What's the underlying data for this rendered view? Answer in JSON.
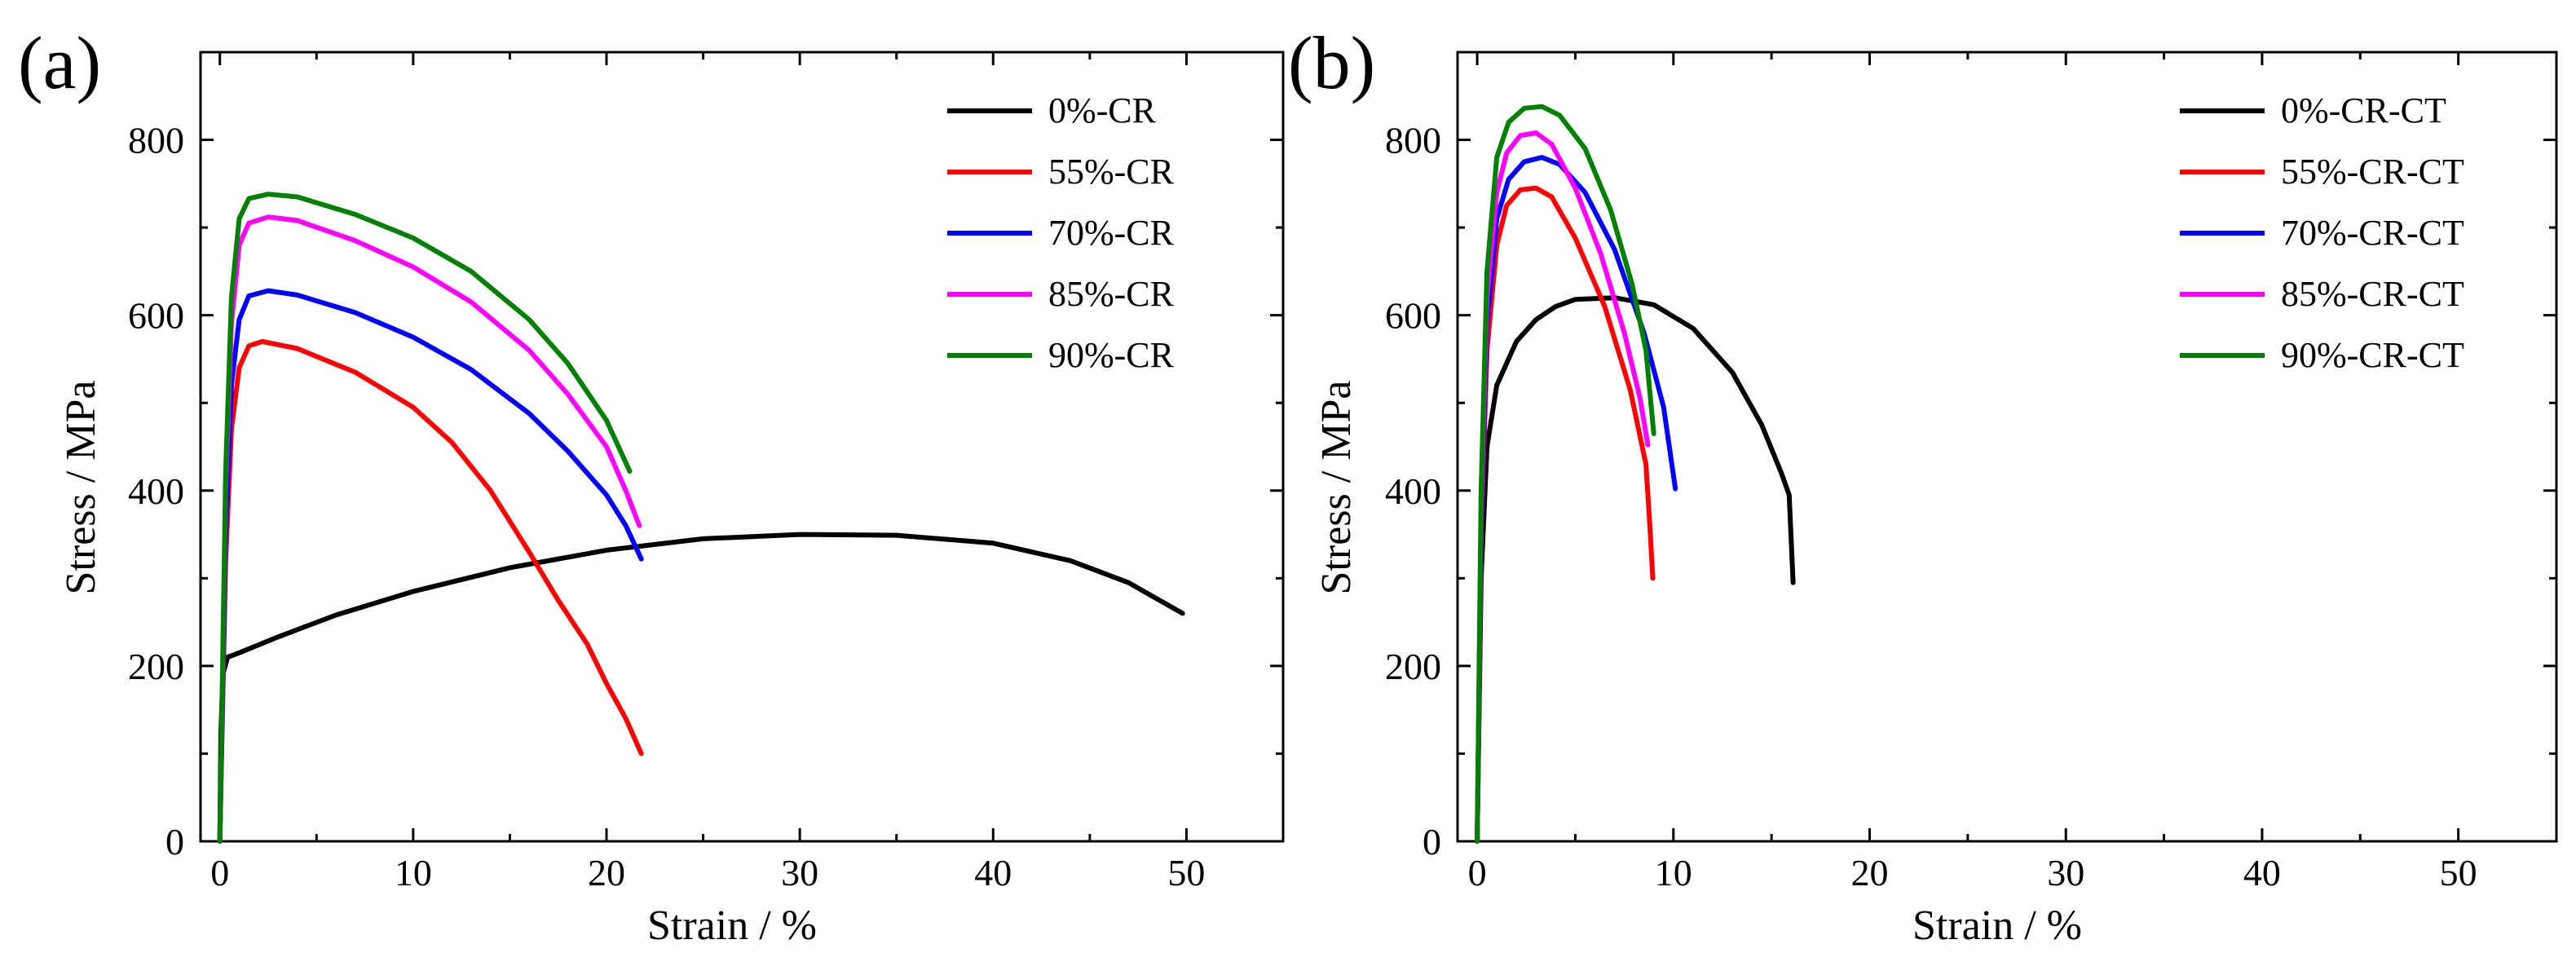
{
  "chart_data": [
    {
      "type": "line",
      "panel_label": "(a)",
      "xlabel": "Strain / %",
      "ylabel": "Stress / MPa",
      "xlim": [
        -1,
        55
      ],
      "ylim": [
        0,
        900
      ],
      "xticks": [
        0,
        10,
        20,
        30,
        40,
        50
      ],
      "yticks": [
        0,
        200,
        400,
        600,
        800
      ],
      "x_tick_labels": [
        "0",
        "10",
        "20",
        "30",
        "40",
        "50"
      ],
      "y_tick_labels": [
        "0",
        "200",
        "400",
        "600",
        "800"
      ],
      "grid": false,
      "legend_position": "top-right",
      "series": [
        {
          "name": "0%-CR",
          "color": "#000000",
          "x": [
            0,
            0.05,
            0.15,
            0.4,
            1,
            3,
            6,
            10,
            15,
            20,
            25,
            30,
            35,
            40,
            44,
            47,
            49.8
          ],
          "y": [
            0,
            120,
            190,
            210,
            215,
            233,
            258,
            285,
            312,
            332,
            345,
            350,
            349,
            340,
            320,
            295,
            260
          ]
        },
        {
          "name": "55%-CR",
          "color": "#ff0000",
          "x": [
            0,
            0.3,
            0.6,
            1,
            1.5,
            2.2,
            4,
            7,
            10,
            12,
            14,
            16,
            17.5,
            19,
            20,
            21,
            21.8
          ],
          "y": [
            0,
            320,
            470,
            540,
            565,
            570,
            562,
            535,
            495,
            455,
            400,
            330,
            275,
            225,
            180,
            140,
            100
          ]
        },
        {
          "name": "70%-CR",
          "color": "#0000ff",
          "x": [
            0,
            0.3,
            0.6,
            1,
            1.5,
            2.5,
            4,
            7,
            10,
            13,
            16,
            18,
            20,
            21,
            21.8
          ],
          "y": [
            0,
            350,
            520,
            595,
            622,
            628,
            623,
            603,
            575,
            538,
            488,
            445,
            395,
            360,
            322
          ]
        },
        {
          "name": "85%-CR",
          "color": "#ff00ff",
          "x": [
            0,
            0.3,
            0.6,
            1,
            1.5,
            2.5,
            4,
            7,
            10,
            13,
            16,
            18,
            20,
            21,
            21.7
          ],
          "y": [
            0,
            400,
            590,
            680,
            705,
            712,
            708,
            685,
            655,
            615,
            560,
            510,
            450,
            400,
            360
          ]
        },
        {
          "name": "90%-CR",
          "color": "#008000",
          "x": [
            0,
            0.3,
            0.6,
            1,
            1.5,
            2.5,
            4,
            7,
            10,
            13,
            16,
            18,
            20,
            21.2
          ],
          "y": [
            0,
            420,
            620,
            710,
            733,
            738,
            735,
            715,
            688,
            650,
            595,
            545,
            480,
            422
          ]
        }
      ]
    },
    {
      "type": "line",
      "panel_label": "(b)",
      "xlabel": "Strain / %",
      "ylabel": "Stress / MPa",
      "xlim": [
        -1,
        55
      ],
      "ylim": [
        0,
        900
      ],
      "xticks": [
        0,
        10,
        20,
        30,
        40,
        50
      ],
      "yticks": [
        0,
        200,
        400,
        600,
        800
      ],
      "x_tick_labels": [
        "0",
        "10",
        "20",
        "30",
        "40",
        "50"
      ],
      "y_tick_labels": [
        "0",
        "200",
        "400",
        "600",
        "800"
      ],
      "grid": false,
      "legend_position": "top-right",
      "series": [
        {
          "name": "0%-CR-CT",
          "color": "#000000",
          "x": [
            0,
            0.2,
            0.5,
            1,
            2,
            3,
            4,
            5,
            7,
            9,
            11,
            13,
            14.5,
            15.5,
            15.9,
            16.1
          ],
          "y": [
            0,
            300,
            450,
            520,
            570,
            595,
            610,
            618,
            620,
            612,
            585,
            535,
            475,
            420,
            395,
            295
          ]
        },
        {
          "name": "55%-CR-CT",
          "color": "#ff0000",
          "x": [
            0,
            0.2,
            0.5,
            1,
            1.5,
            2.2,
            3,
            3.8,
            5,
            6.5,
            7.8,
            8.6,
            8.8,
            8.95
          ],
          "y": [
            0,
            350,
            560,
            680,
            725,
            743,
            745,
            735,
            688,
            610,
            515,
            430,
            360,
            300
          ]
        },
        {
          "name": "70%-CR-CT",
          "color": "#0000ff",
          "x": [
            0,
            0.2,
            0.5,
            1,
            1.6,
            2.4,
            3.3,
            4.2,
            5.5,
            7,
            8.5,
            9.5,
            10.1
          ],
          "y": [
            0,
            360,
            590,
            710,
            755,
            775,
            780,
            772,
            740,
            675,
            580,
            495,
            402
          ]
        },
        {
          "name": "85%-CR-CT",
          "color": "#ff00ff",
          "x": [
            0,
            0.2,
            0.5,
            1,
            1.5,
            2.2,
            3,
            3.8,
            5,
            6.3,
            7.5,
            8.3,
            8.7
          ],
          "y": [
            0,
            380,
            620,
            740,
            785,
            805,
            808,
            795,
            745,
            670,
            580,
            505,
            452
          ]
        },
        {
          "name": "90%-CR-CT",
          "color": "#008000",
          "x": [
            0,
            0.2,
            0.5,
            1,
            1.6,
            2.4,
            3.3,
            4.2,
            5.5,
            6.8,
            7.9,
            8.6,
            9
          ],
          "y": [
            0,
            400,
            650,
            780,
            820,
            836,
            838,
            828,
            790,
            720,
            635,
            560,
            465
          ]
        }
      ]
    }
  ]
}
